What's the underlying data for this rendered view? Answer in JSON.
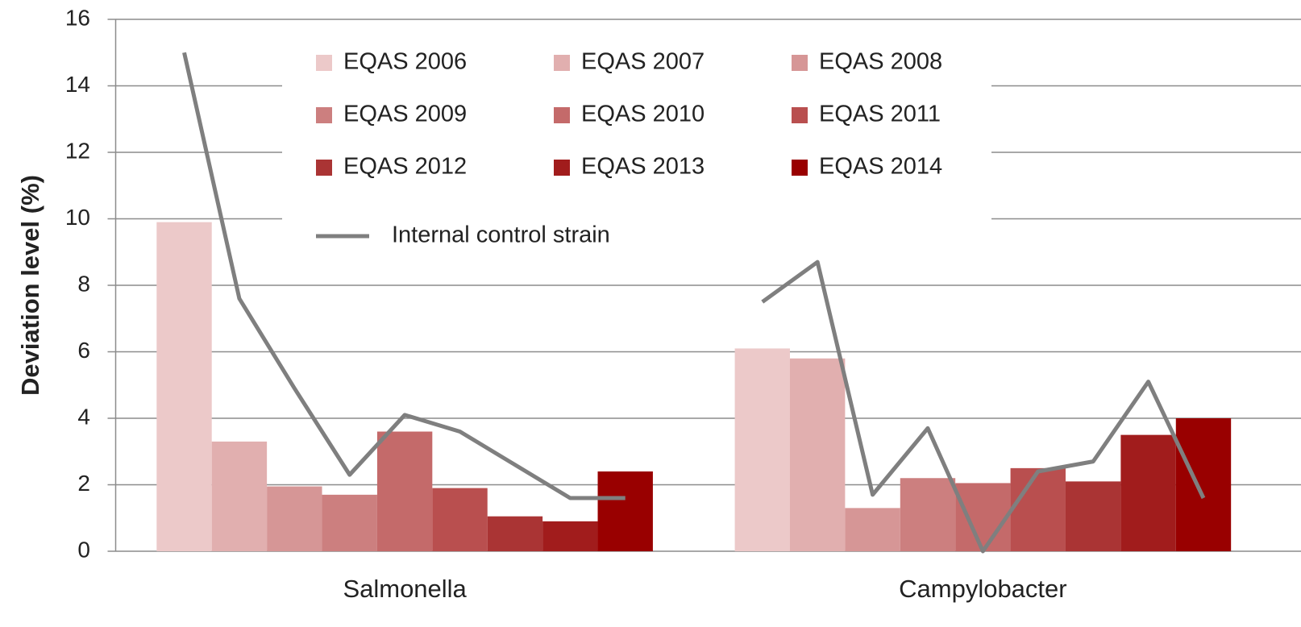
{
  "chart_data": {
    "type": "bar",
    "ylabel": "Deviation level (%)",
    "categories": [
      "Salmonella",
      "Campylobacter"
    ],
    "ylim": [
      0,
      16
    ],
    "yticks": [
      0,
      2,
      4,
      6,
      8,
      10,
      12,
      14,
      16
    ],
    "grid": true,
    "series": [
      {
        "name": "EQAS 2006",
        "color": "#ecc9c9",
        "values": [
          9.9,
          6.1
        ]
      },
      {
        "name": "EQAS 2007",
        "color": "#e1afaf",
        "values": [
          3.3,
          5.8
        ]
      },
      {
        "name": "EQAS 2008",
        "color": "#d69696",
        "values": [
          1.95,
          1.3
        ]
      },
      {
        "name": "EQAS 2009",
        "color": "#cc7f7f",
        "values": [
          1.7,
          2.2
        ]
      },
      {
        "name": "EQAS 2010",
        "color": "#c46a6a",
        "values": [
          3.6,
          2.05
        ]
      },
      {
        "name": "EQAS 2011",
        "color": "#b94f4f",
        "values": [
          1.9,
          2.5
        ]
      },
      {
        "name": "EQAS 2012",
        "color": "#aa3434",
        "values": [
          1.05,
          2.1
        ]
      },
      {
        "name": "EQAS 2013",
        "color": "#a11c1c",
        "values": [
          0.9,
          3.5
        ]
      },
      {
        "name": "EQAS 2014",
        "color": "#990000",
        "values": [
          2.4,
          4.0
        ]
      }
    ],
    "line": {
      "name": "Internal control strain",
      "color": "#7f7f7f",
      "values": [
        [
          15.0,
          7.6,
          4.9,
          2.3,
          4.1,
          3.6,
          2.6,
          1.6,
          1.6
        ],
        [
          7.5,
          8.7,
          1.7,
          3.7,
          0.0,
          2.4,
          2.7,
          5.1,
          1.6
        ]
      ]
    }
  }
}
